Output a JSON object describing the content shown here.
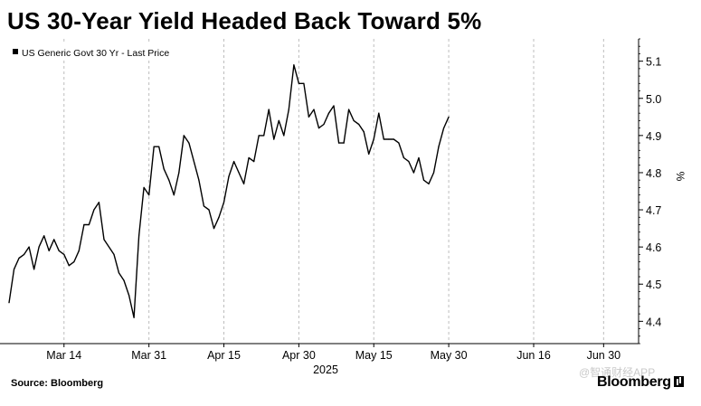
{
  "title": "US 30-Year Yield Headed Back Toward 5%",
  "source": "Source: Bloomberg",
  "brand": "Bloomberg",
  "watermark": "@智通财经APP",
  "chart_data": {
    "type": "line",
    "title": "US 30-Year Yield Headed Back Toward 5%",
    "legend": [
      "US Generic Govt 30 Yr - Last Price"
    ],
    "legend_position": "top-left",
    "ylabel": "%",
    "ylim": [
      4.34,
      5.16
    ],
    "yticks": [
      4.4,
      4.5,
      4.6,
      4.7,
      4.8,
      4.9,
      5.0,
      5.1
    ],
    "ytick_labels": [
      "4.4",
      "4.5",
      "4.6",
      "4.7",
      "4.8",
      "4.9",
      "5.0",
      "5.1"
    ],
    "y_axis_position": "right",
    "grid": "vertical dashed",
    "xlabel": "2025",
    "xlim": [
      "2025-03-03",
      "2025-07-07"
    ],
    "xticks": [
      "2025-03-14",
      "2025-03-31",
      "2025-04-15",
      "2025-04-30",
      "2025-05-15",
      "2025-05-30",
      "2025-06-16",
      "2025-06-30"
    ],
    "xtick_labels": [
      "Mar 14",
      "Mar 31",
      "Apr 15",
      "Apr 30",
      "May 15",
      "May 30",
      "Jun 16",
      "Jun 30"
    ],
    "series": [
      {
        "name": "US Generic Govt 30 Yr - Last Price",
        "color": "#000000",
        "points": [
          [
            "2025-03-03",
            4.45
          ],
          [
            "2025-03-04",
            4.54
          ],
          [
            "2025-03-05",
            4.57
          ],
          [
            "2025-03-06",
            4.58
          ],
          [
            "2025-03-07",
            4.6
          ],
          [
            "2025-03-08",
            4.54
          ],
          [
            "2025-03-09",
            4.6
          ],
          [
            "2025-03-10",
            4.63
          ],
          [
            "2025-03-11",
            4.59
          ],
          [
            "2025-03-12",
            4.62
          ],
          [
            "2025-03-13",
            4.59
          ],
          [
            "2025-03-14",
            4.58
          ],
          [
            "2025-03-15",
            4.55
          ],
          [
            "2025-03-16",
            4.56
          ],
          [
            "2025-03-17",
            4.59
          ],
          [
            "2025-03-18",
            4.66
          ],
          [
            "2025-03-19",
            4.66
          ],
          [
            "2025-03-20",
            4.7
          ],
          [
            "2025-03-21",
            4.72
          ],
          [
            "2025-03-22",
            4.62
          ],
          [
            "2025-03-24",
            4.58
          ],
          [
            "2025-03-25",
            4.53
          ],
          [
            "2025-03-26",
            4.51
          ],
          [
            "2025-03-27",
            4.47
          ],
          [
            "2025-03-28",
            4.41
          ],
          [
            "2025-03-29",
            4.63
          ],
          [
            "2025-03-30",
            4.76
          ],
          [
            "2025-03-31",
            4.74
          ],
          [
            "2025-04-01",
            4.87
          ],
          [
            "2025-04-02",
            4.87
          ],
          [
            "2025-04-03",
            4.81
          ],
          [
            "2025-04-04",
            4.78
          ],
          [
            "2025-04-05",
            4.74
          ],
          [
            "2025-04-06",
            4.8
          ],
          [
            "2025-04-07",
            4.9
          ],
          [
            "2025-04-08",
            4.88
          ],
          [
            "2025-04-10",
            4.78
          ],
          [
            "2025-04-11",
            4.71
          ],
          [
            "2025-04-12",
            4.7
          ],
          [
            "2025-04-13",
            4.65
          ],
          [
            "2025-04-14",
            4.68
          ],
          [
            "2025-04-15",
            4.72
          ],
          [
            "2025-04-16",
            4.79
          ],
          [
            "2025-04-17",
            4.83
          ],
          [
            "2025-04-18",
            4.8
          ],
          [
            "2025-04-19",
            4.77
          ],
          [
            "2025-04-20",
            4.84
          ],
          [
            "2025-04-21",
            4.83
          ],
          [
            "2025-04-22",
            4.9
          ],
          [
            "2025-04-23",
            4.9
          ],
          [
            "2025-04-24",
            4.97
          ],
          [
            "2025-04-25",
            4.89
          ],
          [
            "2025-04-26",
            4.94
          ],
          [
            "2025-04-27",
            4.9
          ],
          [
            "2025-04-28",
            4.97
          ],
          [
            "2025-04-29",
            5.09
          ],
          [
            "2025-04-30",
            5.04
          ],
          [
            "2025-05-01",
            5.04
          ],
          [
            "2025-05-02",
            4.95
          ],
          [
            "2025-05-03",
            4.97
          ],
          [
            "2025-05-04",
            4.92
          ],
          [
            "2025-05-05",
            4.93
          ],
          [
            "2025-05-06",
            4.96
          ],
          [
            "2025-05-07",
            4.98
          ],
          [
            "2025-05-08",
            4.88
          ],
          [
            "2025-05-09",
            4.88
          ],
          [
            "2025-05-10",
            4.97
          ],
          [
            "2025-05-11",
            4.94
          ],
          [
            "2025-05-12",
            4.93
          ],
          [
            "2025-05-13",
            4.91
          ],
          [
            "2025-05-14",
            4.85
          ],
          [
            "2025-05-15",
            4.89
          ],
          [
            "2025-05-16",
            4.96
          ],
          [
            "2025-05-17",
            4.89
          ],
          [
            "2025-05-18",
            4.89
          ],
          [
            "2025-05-19",
            4.89
          ],
          [
            "2025-05-20",
            4.88
          ],
          [
            "2025-05-21",
            4.84
          ],
          [
            "2025-05-22",
            4.83
          ],
          [
            "2025-05-23",
            4.8
          ],
          [
            "2025-05-24",
            4.84
          ],
          [
            "2025-05-25",
            4.78
          ],
          [
            "2025-05-26",
            4.77
          ],
          [
            "2025-05-27",
            4.8
          ],
          [
            "2025-05-28",
            4.87
          ],
          [
            "2025-05-29",
            4.92
          ],
          [
            "2025-05-30",
            4.95
          ]
        ]
      }
    ]
  }
}
